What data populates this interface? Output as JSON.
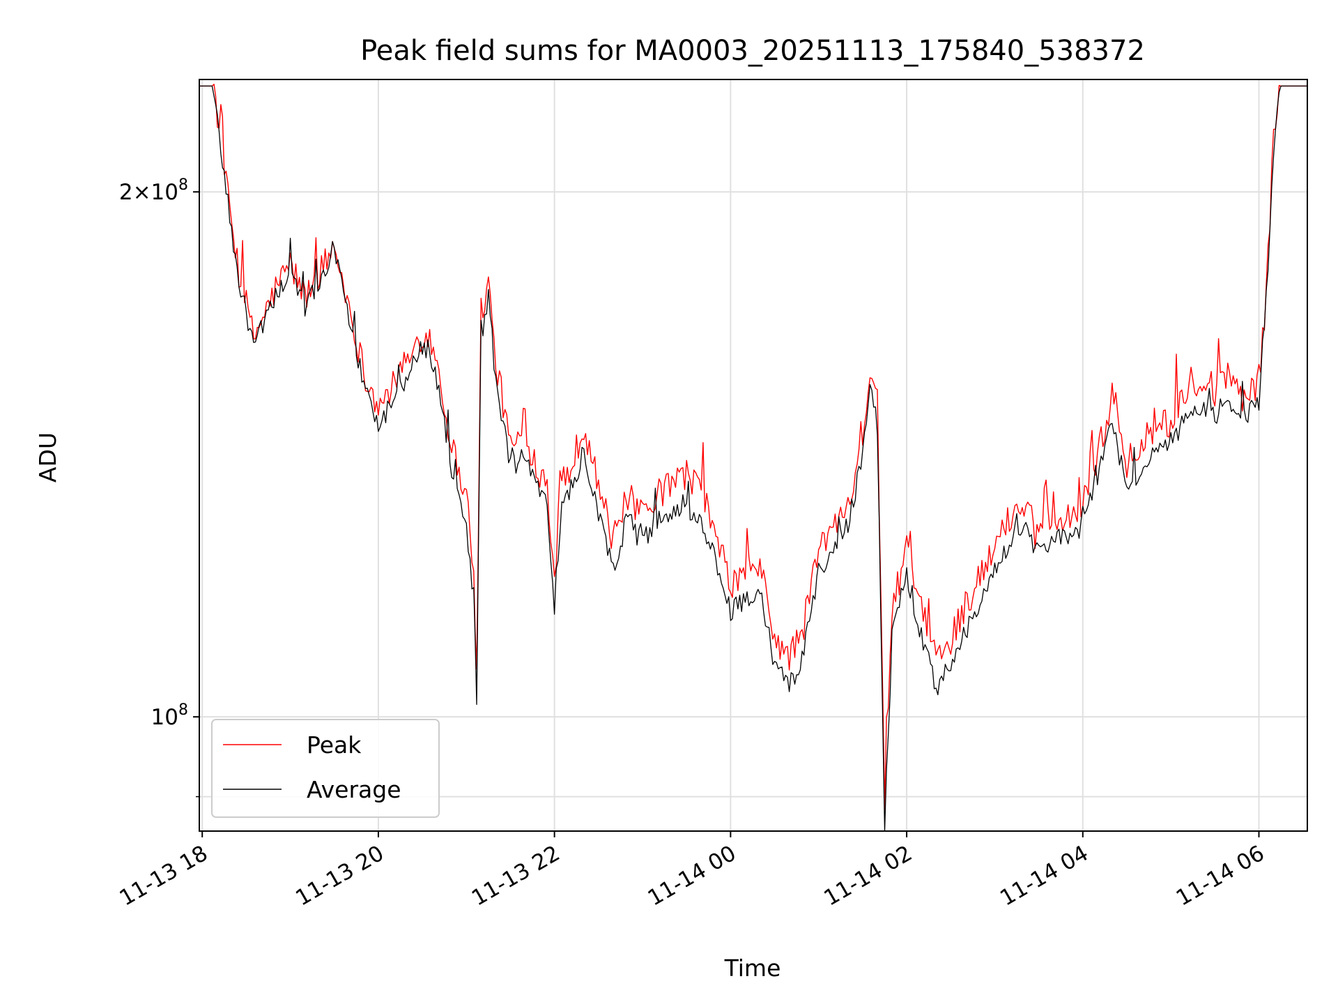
{
  "chart_data": {
    "type": "line",
    "title": "Peak field sums for MA0003_20251113_175840_538372",
    "xlabel": "Time",
    "ylabel": "ADU",
    "yscale": "log",
    "ylim": [
      86000000,
      232000000
    ],
    "xlim": [
      "2025-11-13 17:58",
      "2025-11-14 06:33"
    ],
    "grid": true,
    "legend": "lower-left",
    "x_ticks": [
      "11-13 18",
      "11-13 20",
      "11-13 22",
      "11-14 00",
      "11-14 02",
      "11-14 04",
      "11-14 06"
    ],
    "x_tick_times": [
      "2025-11-13 18:00",
      "2025-11-13 20:00",
      "2025-11-13 22:00",
      "2025-11-14 00:00",
      "2025-11-14 02:00",
      "2025-11-14 04:00",
      "2025-11-14 06:00"
    ],
    "y_ticks": [
      {
        "value": 100000000,
        "base": "10",
        "exp": "8"
      },
      {
        "value": 200000000,
        "mant": "2",
        "base": "10",
        "exp": "8"
      }
    ],
    "y_minor_ticks": [
      90000000
    ],
    "series": [
      {
        "name": "Peak",
        "color": "#ff0000",
        "x": [
          "2025-11-13 17:58",
          "2025-11-13 18:08",
          "2025-11-13 18:15",
          "2025-11-13 18:25",
          "2025-11-13 18:35",
          "2025-11-13 18:45",
          "2025-11-13 18:50",
          "2025-11-13 19:00",
          "2025-11-13 19:10",
          "2025-11-13 19:20",
          "2025-11-13 19:30",
          "2025-11-13 19:40",
          "2025-11-13 19:50",
          "2025-11-13 20:00",
          "2025-11-13 20:10",
          "2025-11-13 20:20",
          "2025-11-13 20:30",
          "2025-11-13 20:35",
          "2025-11-13 20:40",
          "2025-11-13 20:50",
          "2025-11-13 21:00",
          "2025-11-13 21:05",
          "2025-11-13 21:07",
          "2025-11-13 21:10",
          "2025-11-13 21:15",
          "2025-11-13 21:20",
          "2025-11-13 21:30",
          "2025-11-13 21:40",
          "2025-11-13 21:50",
          "2025-11-13 21:55",
          "2025-11-13 22:00",
          "2025-11-13 22:05",
          "2025-11-13 22:10",
          "2025-11-13 22:20",
          "2025-11-13 22:30",
          "2025-11-13 22:40",
          "2025-11-13 22:50",
          "2025-11-13 23:00",
          "2025-11-13 23:10",
          "2025-11-13 23:20",
          "2025-11-13 23:30",
          "2025-11-13 23:40",
          "2025-11-13 23:50",
          "2025-11-14 00:00",
          "2025-11-14 00:10",
          "2025-11-14 00:20",
          "2025-11-14 00:30",
          "2025-11-14 00:40",
          "2025-11-14 00:50",
          "2025-11-14 01:00",
          "2025-11-14 01:10",
          "2025-11-14 01:20",
          "2025-11-14 01:30",
          "2025-11-14 01:35",
          "2025-11-14 01:40",
          "2025-11-14 01:45",
          "2025-11-14 01:50",
          "2025-11-14 02:00",
          "2025-11-14 02:10",
          "2025-11-14 02:20",
          "2025-11-14 02:30",
          "2025-11-14 02:40",
          "2025-11-14 02:50",
          "2025-11-14 03:00",
          "2025-11-14 03:10",
          "2025-11-14 03:20",
          "2025-11-14 03:30",
          "2025-11-14 03:40",
          "2025-11-14 03:50",
          "2025-11-14 04:00",
          "2025-11-14 04:10",
          "2025-11-14 04:20",
          "2025-11-14 04:30",
          "2025-11-14 04:40",
          "2025-11-14 04:50",
          "2025-11-14 05:00",
          "2025-11-14 05:10",
          "2025-11-14 05:20",
          "2025-11-14 05:30",
          "2025-11-14 05:40",
          "2025-11-14 05:50",
          "2025-11-14 06:00",
          "2025-11-14 06:05",
          "2025-11-14 06:10",
          "2025-11-14 06:15",
          "2025-11-14 06:33"
        ],
        "y": [
          230000000,
          230000000,
          205000000,
          180000000,
          165000000,
          172000000,
          176000000,
          182000000,
          174000000,
          180000000,
          186000000,
          172000000,
          158000000,
          150000000,
          155000000,
          160000000,
          166000000,
          165000000,
          160000000,
          143000000,
          134000000,
          122000000,
          105000000,
          171000000,
          177000000,
          160000000,
          143000000,
          145000000,
          138000000,
          137000000,
          120000000,
          137000000,
          138000000,
          147000000,
          136000000,
          126000000,
          134000000,
          130000000,
          134000000,
          136000000,
          138000000,
          135000000,
          127000000,
          119000000,
          121000000,
          122000000,
          111000000,
          108000000,
          113000000,
          125000000,
          128000000,
          133000000,
          145000000,
          158000000,
          151000000,
          90000000,
          115000000,
          125000000,
          115000000,
          108000000,
          111000000,
          116000000,
          120000000,
          125000000,
          130000000,
          133000000,
          128000000,
          131000000,
          130000000,
          133000000,
          141000000,
          153000000,
          139000000,
          143000000,
          147000000,
          148000000,
          152000000,
          155000000,
          153000000,
          157000000,
          152000000,
          156000000,
          175000000,
          215000000,
          230000000,
          230000000
        ]
      },
      {
        "name": "Average",
        "color": "#000000",
        "x": [
          "2025-11-13 17:58",
          "2025-11-13 18:08",
          "2025-11-13 18:15",
          "2025-11-13 18:25",
          "2025-11-13 18:35",
          "2025-11-13 18:45",
          "2025-11-13 18:50",
          "2025-11-13 19:00",
          "2025-11-13 19:10",
          "2025-11-13 19:20",
          "2025-11-13 19:30",
          "2025-11-13 19:40",
          "2025-11-13 19:50",
          "2025-11-13 20:00",
          "2025-11-13 20:10",
          "2025-11-13 20:20",
          "2025-11-13 20:30",
          "2025-11-13 20:35",
          "2025-11-13 20:40",
          "2025-11-13 20:50",
          "2025-11-13 21:00",
          "2025-11-13 21:05",
          "2025-11-13 21:07",
          "2025-11-13 21:10",
          "2025-11-13 21:15",
          "2025-11-13 21:20",
          "2025-11-13 21:30",
          "2025-11-13 21:40",
          "2025-11-13 21:50",
          "2025-11-13 21:55",
          "2025-11-13 22:00",
          "2025-11-13 22:05",
          "2025-11-13 22:10",
          "2025-11-13 22:20",
          "2025-11-13 22:30",
          "2025-11-13 22:40",
          "2025-11-13 22:50",
          "2025-11-13 23:00",
          "2025-11-13 23:10",
          "2025-11-13 23:20",
          "2025-11-13 23:30",
          "2025-11-13 23:40",
          "2025-11-13 23:50",
          "2025-11-14 00:00",
          "2025-11-14 00:10",
          "2025-11-14 00:20",
          "2025-11-14 00:30",
          "2025-11-14 00:40",
          "2025-11-14 00:50",
          "2025-11-14 01:00",
          "2025-11-14 01:10",
          "2025-11-14 01:20",
          "2025-11-14 01:30",
          "2025-11-14 01:35",
          "2025-11-14 01:40",
          "2025-11-14 01:45",
          "2025-11-14 01:50",
          "2025-11-14 02:00",
          "2025-11-14 02:10",
          "2025-11-14 02:20",
          "2025-11-14 02:30",
          "2025-11-14 02:40",
          "2025-11-14 02:50",
          "2025-11-14 03:00",
          "2025-11-14 03:10",
          "2025-11-14 03:20",
          "2025-11-14 03:30",
          "2025-11-14 03:40",
          "2025-11-14 03:50",
          "2025-11-14 04:00",
          "2025-11-14 04:10",
          "2025-11-14 04:20",
          "2025-11-14 04:30",
          "2025-11-14 04:40",
          "2025-11-14 04:50",
          "2025-11-14 05:00",
          "2025-11-14 05:10",
          "2025-11-14 05:20",
          "2025-11-14 05:30",
          "2025-11-14 05:40",
          "2025-11-14 05:50",
          "2025-11-14 06:00",
          "2025-11-14 06:05",
          "2025-11-14 06:10",
          "2025-11-14 06:15",
          "2025-11-14 06:33"
        ],
        "y": [
          230000000,
          230000000,
          204000000,
          178000000,
          163000000,
          170000000,
          174000000,
          180000000,
          172000000,
          178000000,
          184000000,
          170000000,
          155000000,
          147000000,
          152000000,
          157000000,
          163000000,
          162000000,
          156000000,
          138000000,
          129000000,
          117000000,
          102000000,
          168000000,
          174000000,
          156000000,
          139000000,
          141000000,
          134000000,
          133000000,
          116000000,
          133000000,
          134000000,
          142000000,
          131000000,
          122000000,
          130000000,
          126000000,
          130000000,
          131000000,
          133000000,
          130000000,
          123000000,
          115000000,
          117000000,
          118000000,
          107000000,
          104000000,
          109000000,
          121000000,
          124000000,
          129000000,
          141000000,
          155000000,
          147000000,
          87000000,
          111000000,
          121000000,
          111000000,
          104000000,
          107000000,
          112000000,
          116000000,
          121000000,
          126000000,
          129000000,
          124000000,
          127000000,
          126000000,
          129000000,
          137000000,
          148000000,
          135000000,
          139000000,
          143000000,
          144000000,
          148000000,
          150000000,
          149000000,
          152000000,
          148000000,
          152000000,
          172000000,
          212000000,
          230000000,
          230000000
        ]
      }
    ]
  }
}
